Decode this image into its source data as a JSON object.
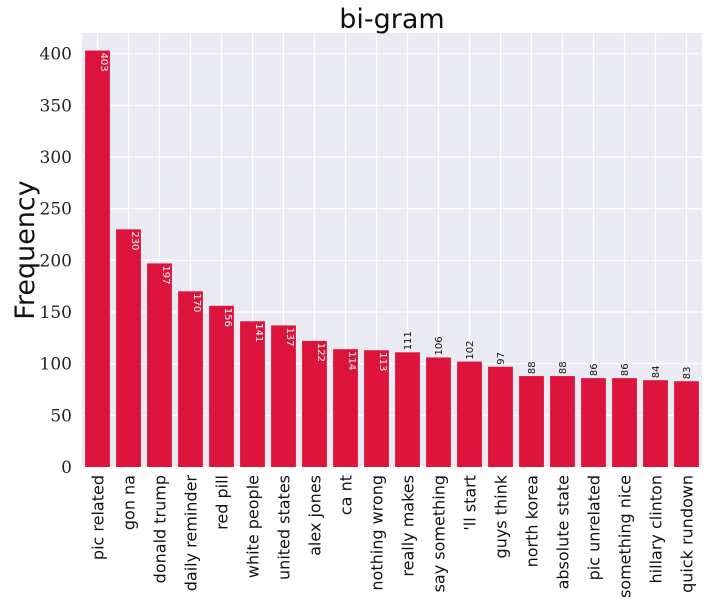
{
  "chart_data": {
    "type": "bar",
    "title": "bi-gram",
    "xlabel": "",
    "ylabel": "Frequency",
    "ylim": [
      0,
      420
    ],
    "yticks": [
      0,
      50,
      100,
      150,
      200,
      250,
      300,
      350,
      400
    ],
    "grid": true,
    "bar_color": "#dc143c",
    "background_color": "#eaeaf2",
    "grid_color": "#ffffff",
    "categories": [
      "pic related",
      "gon na",
      "donald trump",
      "daily reminder",
      "red pill",
      "white people",
      "united states",
      "alex jones",
      "ca nt",
      "nothing wrong",
      "really makes",
      "say something",
      "'ll start",
      "guys think",
      "north korea",
      "absolute state",
      "pic unrelated",
      "something nice",
      "hillary clinton",
      "quick rundown"
    ],
    "values": [
      403,
      230,
      197,
      170,
      156,
      141,
      137,
      122,
      114,
      113,
      111,
      106,
      102,
      97,
      88,
      88,
      86,
      86,
      84,
      83
    ]
  }
}
